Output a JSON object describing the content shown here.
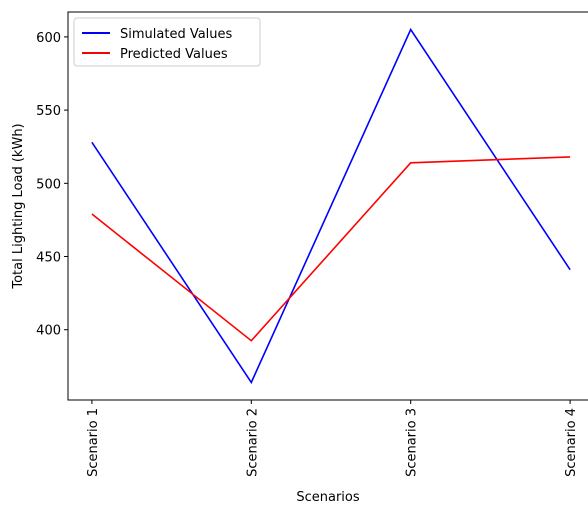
{
  "chart_data": {
    "type": "line",
    "x_label": "Scenarios",
    "y_label": "Total Lighting Load (kWh)",
    "categories": [
      "Scenario 1",
      "Scenario 2",
      "Scenario 3",
      "Scenario 4"
    ],
    "series": [
      {
        "name": "Simulated Values",
        "color": "#0000ff",
        "values": [
          528,
          364,
          605,
          441
        ]
      },
      {
        "name": "Predicted Values",
        "color": "#ff0000",
        "values": [
          479,
          392.5,
          514,
          518
        ]
      }
    ],
    "ylim": [
      352,
      617
    ],
    "yticks": [
      400,
      450,
      500,
      550,
      600
    ],
    "legend": "upper left"
  }
}
